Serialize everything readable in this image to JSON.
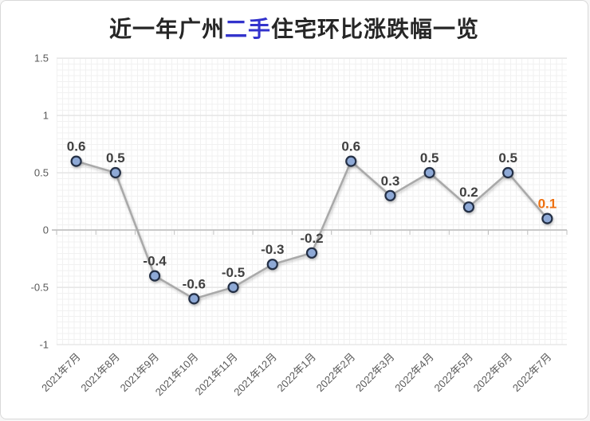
{
  "page": {
    "background": "#ffffff",
    "border_color": "#d9d9d9"
  },
  "title": {
    "prefix": "近一年广州",
    "highlight": "二手",
    "suffix": "住宅环比涨跌幅一览",
    "highlight_color": "#3333cc",
    "text_color": "#262626"
  },
  "chart_data": {
    "type": "line",
    "title": "近一年广州二手住宅环比涨跌幅一览",
    "categories": [
      "2021年7月",
      "2021年8月",
      "2021年9月",
      "2021年10月",
      "2021年11月",
      "2021年12月",
      "2022年1月",
      "2022年2月",
      "2022年3月",
      "2022年4月",
      "2022年5月",
      "2022年6月",
      "2022年7月"
    ],
    "values": [
      0.6,
      0.5,
      -0.4,
      -0.6,
      -0.5,
      -0.3,
      -0.2,
      0.6,
      0.3,
      0.5,
      0.2,
      0.5,
      0.1
    ],
    "point_labels": [
      "0.6",
      "0.5",
      "-0.4",
      "-0.6",
      "-0.5",
      "-0.3",
      "-0.2",
      "0.6",
      "0.3",
      "0.5",
      "0.2",
      "0.5",
      "0.1"
    ],
    "xlabel": "",
    "ylabel": "",
    "ylim": [
      -1,
      1.5
    ],
    "y_ticks": {
      "values": [
        1.5,
        1,
        0.5,
        0,
        -0.5,
        -1
      ],
      "labels": [
        "1.5",
        "1",
        "0.5",
        "0",
        "-0.5",
        "-1"
      ]
    },
    "grid": "fine minor grid both directions; major horizontal lines every 0.5; emphasized zero axis with category tick marks",
    "legend_position": "none",
    "colors": {
      "line": "#a9a9a9",
      "marker_fill": "#8ea9d6",
      "marker_stroke": "#232f45",
      "data_label": "#404040",
      "last_data_label": "#ee7111",
      "axis_text": "#595959",
      "major_grid": "#e3e3e3",
      "minor_grid": "#f1f1f1",
      "zero_axis": "#c9c9c9",
      "zero_tick": "#c0c0c0"
    }
  }
}
